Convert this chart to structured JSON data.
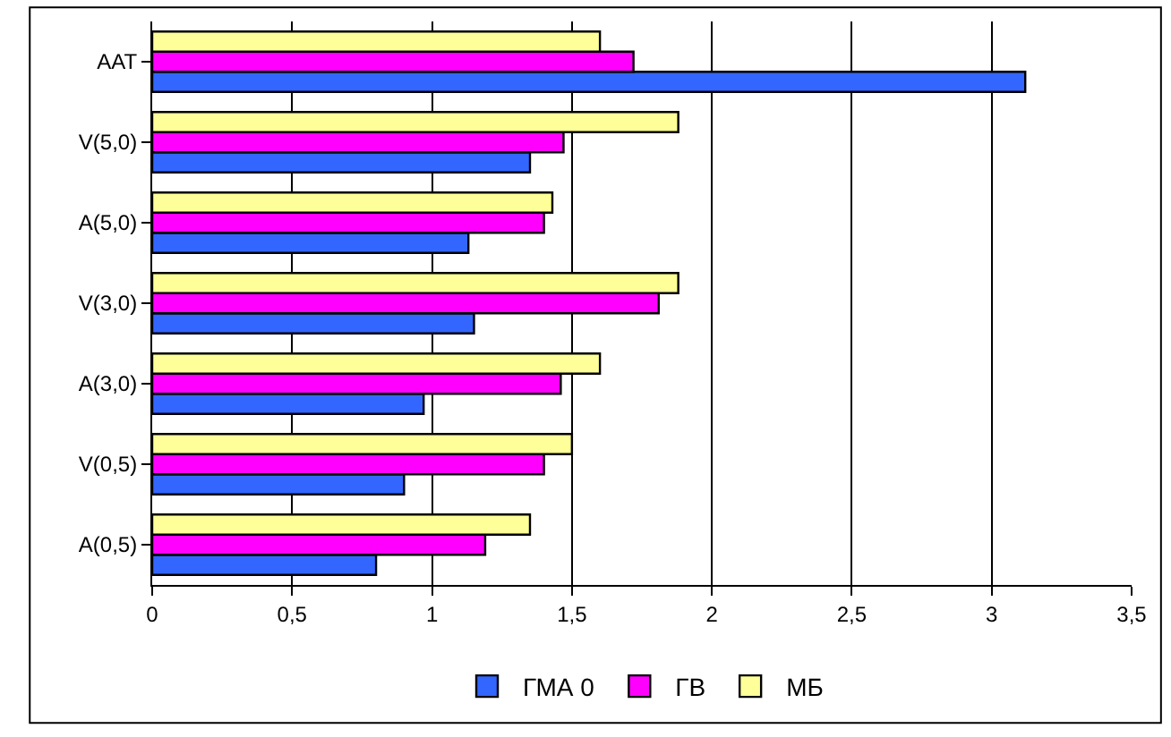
{
  "chart_data": {
    "type": "bar",
    "orientation": "horizontal",
    "categories": [
      "AAT",
      "V(5,0)",
      "A(5,0)",
      "V(3,0)",
      "A(3,0)",
      "V(0,5)",
      "A(0,5)"
    ],
    "series": [
      {
        "name": "ГМА 0",
        "color": "#3366ff",
        "values": [
          3.12,
          1.35,
          1.13,
          1.15,
          0.97,
          0.9,
          0.8
        ]
      },
      {
        "name": "ГВ",
        "color": "#ff00ff",
        "values": [
          1.72,
          1.47,
          1.4,
          1.81,
          1.46,
          1.4,
          1.19
        ]
      },
      {
        "name": "МБ",
        "color": "#ffff99",
        "values": [
          1.6,
          1.88,
          1.43,
          1.88,
          1.6,
          1.5,
          1.35
        ]
      }
    ],
    "xlim": [
      0,
      3.5
    ],
    "xticks": [
      {
        "value": 0,
        "label": "0"
      },
      {
        "value": 0.5,
        "label": "0,5"
      },
      {
        "value": 1,
        "label": "1"
      },
      {
        "value": 1.5,
        "label": "1,5"
      },
      {
        "value": 2,
        "label": "2"
      },
      {
        "value": 2.5,
        "label": "2,5"
      },
      {
        "value": 3,
        "label": "3"
      },
      {
        "value": 3.5,
        "label": "3,5"
      }
    ],
    "grid": "x",
    "legend": "bottom"
  }
}
